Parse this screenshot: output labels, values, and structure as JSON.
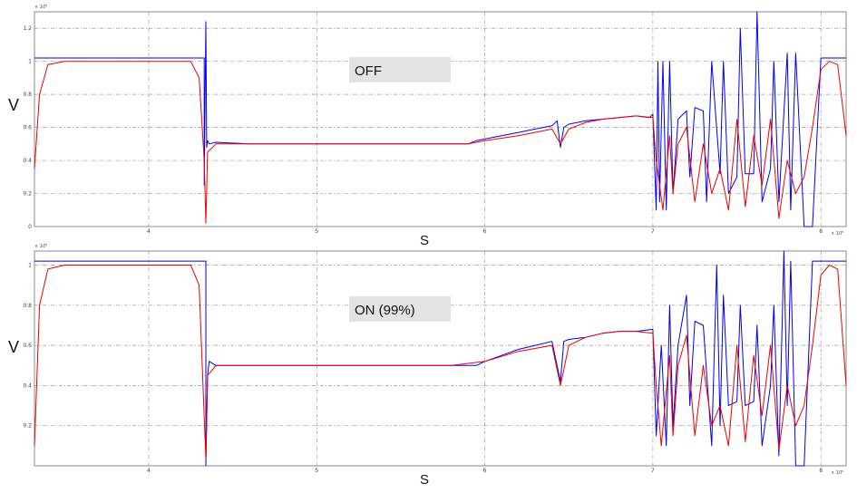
{
  "chart_data": [
    {
      "type": "line",
      "panel": "top",
      "annotation": "OFF",
      "xlabel": "S",
      "ylabel": "V",
      "x_exponent": "× 10⁵",
      "y_exponent": "× 10⁵",
      "xlim": [
        3.32,
        8.15
      ],
      "ylim": [
        0,
        1.3
      ],
      "x_ticks": [
        4,
        5,
        6,
        7,
        8
      ],
      "y_ticks": [
        0,
        0.2,
        0.4,
        0.6,
        0.8,
        1,
        1.2
      ],
      "grid": true,
      "series": [
        {
          "color": "#0000ee",
          "x": [
            3.32,
            4.33,
            4.33,
            4.34,
            4.345,
            4.35,
            4.36,
            4.4,
            4.6,
            4.8,
            5.0,
            5.2,
            5.4,
            5.6,
            5.9,
            5.95,
            6.0,
            6.1,
            6.2,
            6.3,
            6.4,
            6.43,
            6.45,
            6.47,
            6.5,
            6.6,
            6.7,
            6.8,
            6.9,
            6.98,
            7.0,
            7.02,
            7.03,
            7.04,
            7.06,
            7.08,
            7.1,
            7.12,
            7.15,
            7.2,
            7.22,
            7.25,
            7.3,
            7.32,
            7.35,
            7.4,
            7.42,
            7.45,
            7.5,
            7.52,
            7.55,
            7.6,
            7.62,
            7.65,
            7.7,
            7.72,
            7.75,
            7.8,
            7.82,
            7.85,
            7.9,
            7.95,
            8.0,
            8.15
          ],
          "y": [
            1.02,
            1.02,
            0.25,
            1.24,
            0.48,
            0.52,
            0.5,
            0.51,
            0.5,
            0.5,
            0.5,
            0.5,
            0.5,
            0.5,
            0.5,
            0.52,
            0.53,
            0.55,
            0.57,
            0.59,
            0.61,
            0.64,
            0.48,
            0.6,
            0.62,
            0.64,
            0.65,
            0.66,
            0.67,
            0.66,
            0.68,
            0.1,
            1.0,
            0.15,
            1.0,
            0.1,
            1.0,
            0.2,
            0.65,
            0.7,
            0.3,
            0.72,
            0.7,
            0.15,
            1.0,
            0.32,
            1.0,
            0.2,
            0.3,
            1.2,
            0.32,
            0.32,
            1.3,
            0.15,
            0.35,
            1.0,
            0.15,
            1.05,
            0.1,
            1.05,
            0.0,
            0.0,
            1.02,
            1.02
          ]
        },
        {
          "color": "#ee0000",
          "x": [
            3.32,
            3.35,
            3.4,
            3.5,
            4.25,
            4.3,
            4.33,
            4.34,
            4.35,
            4.4,
            4.6,
            4.8,
            5.0,
            5.2,
            5.4,
            5.6,
            5.9,
            6.0,
            6.2,
            6.4,
            6.45,
            6.5,
            6.6,
            6.7,
            6.8,
            6.9,
            7.0,
            7.02,
            7.06,
            7.1,
            7.12,
            7.15,
            7.2,
            7.25,
            7.3,
            7.35,
            7.4,
            7.45,
            7.5,
            7.55,
            7.6,
            7.65,
            7.7,
            7.75,
            7.8,
            7.85,
            7.9,
            7.95,
            8.0,
            8.05,
            8.1,
            8.15
          ],
          "y": [
            0.35,
            0.8,
            0.98,
            1.0,
            1.0,
            0.9,
            0.4,
            0.02,
            0.45,
            0.5,
            0.5,
            0.5,
            0.5,
            0.5,
            0.5,
            0.5,
            0.5,
            0.52,
            0.55,
            0.59,
            0.5,
            0.59,
            0.63,
            0.65,
            0.66,
            0.67,
            0.66,
            0.4,
            0.1,
            0.55,
            0.2,
            0.5,
            0.6,
            0.15,
            0.5,
            0.2,
            0.35,
            0.1,
            0.65,
            0.12,
            0.55,
            0.25,
            0.65,
            0.05,
            0.4,
            0.2,
            0.3,
            0.6,
            0.95,
            1.0,
            0.98,
            0.55
          ]
        }
      ]
    },
    {
      "type": "line",
      "panel": "bottom",
      "annotation": "ON (99%)",
      "xlabel": "S",
      "ylabel": "V",
      "x_exponent": "× 10⁵",
      "y_exponent": "× 10⁵",
      "xlim": [
        3.32,
        8.15
      ],
      "ylim": [
        0,
        1.07
      ],
      "x_ticks": [
        4,
        5,
        6,
        7,
        8
      ],
      "y_ticks": [
        0.2,
        0.4,
        0.6,
        0.8,
        1
      ],
      "grid": true,
      "series": [
        {
          "color": "#0000ee",
          "x": [
            3.32,
            4.34,
            4.34,
            4.35,
            4.36,
            4.4,
            4.6,
            4.8,
            5.0,
            5.2,
            5.4,
            5.6,
            5.8,
            5.95,
            6.0,
            6.1,
            6.2,
            6.3,
            6.4,
            6.45,
            6.47,
            6.5,
            6.6,
            6.7,
            6.8,
            6.9,
            7.0,
            7.02,
            7.05,
            7.08,
            7.1,
            7.12,
            7.15,
            7.2,
            7.22,
            7.25,
            7.3,
            7.35,
            7.38,
            7.4,
            7.42,
            7.45,
            7.5,
            7.52,
            7.55,
            7.6,
            7.62,
            7.65,
            7.7,
            7.72,
            7.75,
            7.78,
            7.8,
            7.82,
            7.85,
            7.9,
            7.95,
            8.0,
            8.15
          ],
          "y": [
            1.02,
            1.02,
            0.0,
            0.45,
            0.52,
            0.5,
            0.5,
            0.5,
            0.5,
            0.5,
            0.5,
            0.5,
            0.5,
            0.5,
            0.52,
            0.55,
            0.58,
            0.6,
            0.62,
            0.42,
            0.62,
            0.63,
            0.64,
            0.66,
            0.67,
            0.67,
            0.68,
            0.15,
            0.6,
            0.1,
            0.8,
            0.2,
            0.6,
            0.85,
            0.3,
            0.72,
            0.7,
            0.1,
            1.0,
            0.2,
            0.85,
            0.3,
            0.32,
            0.8,
            0.3,
            0.32,
            0.7,
            0.1,
            0.4,
            0.8,
            0.05,
            1.07,
            0.3,
            1.02,
            0.0,
            0.0,
            1.02,
            1.02,
            1.02
          ]
        },
        {
          "color": "#ee0000",
          "x": [
            3.32,
            3.35,
            3.4,
            3.5,
            4.25,
            4.3,
            4.34,
            4.35,
            4.4,
            4.6,
            4.8,
            5.0,
            5.2,
            5.4,
            5.6,
            5.8,
            6.0,
            6.2,
            6.4,
            6.45,
            6.5,
            6.6,
            6.7,
            6.8,
            6.9,
            7.0,
            7.02,
            7.05,
            7.1,
            7.12,
            7.15,
            7.2,
            7.25,
            7.3,
            7.35,
            7.4,
            7.45,
            7.5,
            7.55,
            7.6,
            7.65,
            7.7,
            7.75,
            7.8,
            7.85,
            7.9,
            7.95,
            8.0,
            8.05,
            8.1,
            8.15
          ],
          "y": [
            0.1,
            0.8,
            0.98,
            1.0,
            1.0,
            0.9,
            0.03,
            0.45,
            0.5,
            0.5,
            0.5,
            0.5,
            0.5,
            0.5,
            0.5,
            0.5,
            0.52,
            0.57,
            0.6,
            0.4,
            0.6,
            0.64,
            0.66,
            0.67,
            0.67,
            0.66,
            0.4,
            0.1,
            0.55,
            0.15,
            0.5,
            0.65,
            0.15,
            0.5,
            0.2,
            0.3,
            0.1,
            0.6,
            0.12,
            0.55,
            0.25,
            0.6,
            0.08,
            0.4,
            0.2,
            0.3,
            0.6,
            0.95,
            1.0,
            0.98,
            0.4
          ]
        }
      ]
    }
  ]
}
